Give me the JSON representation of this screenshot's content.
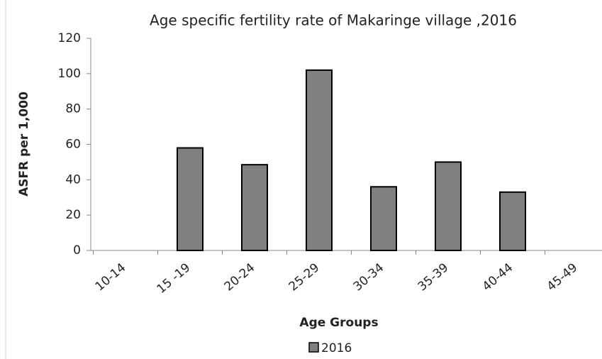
{
  "chart_data": {
    "type": "bar",
    "title": "Age specific fertility rate of Makaringe village ,2016",
    "x_label": "Age Groups",
    "y_label": "ASFR per 1,000",
    "categories": [
      "10-14",
      "15 -19",
      "20-24",
      "25-29",
      "30-34",
      "35-39",
      "40-44",
      "45-49"
    ],
    "series": [
      {
        "name": "2016",
        "color": "#808080",
        "values": [
          0,
          58,
          48.5,
          102,
          36,
          50,
          33,
          0
        ]
      }
    ],
    "ylim": [
      0,
      120
    ],
    "yticks": [
      0,
      20,
      40,
      60,
      80,
      100,
      120
    ],
    "grid": false,
    "legend": "bottom"
  }
}
